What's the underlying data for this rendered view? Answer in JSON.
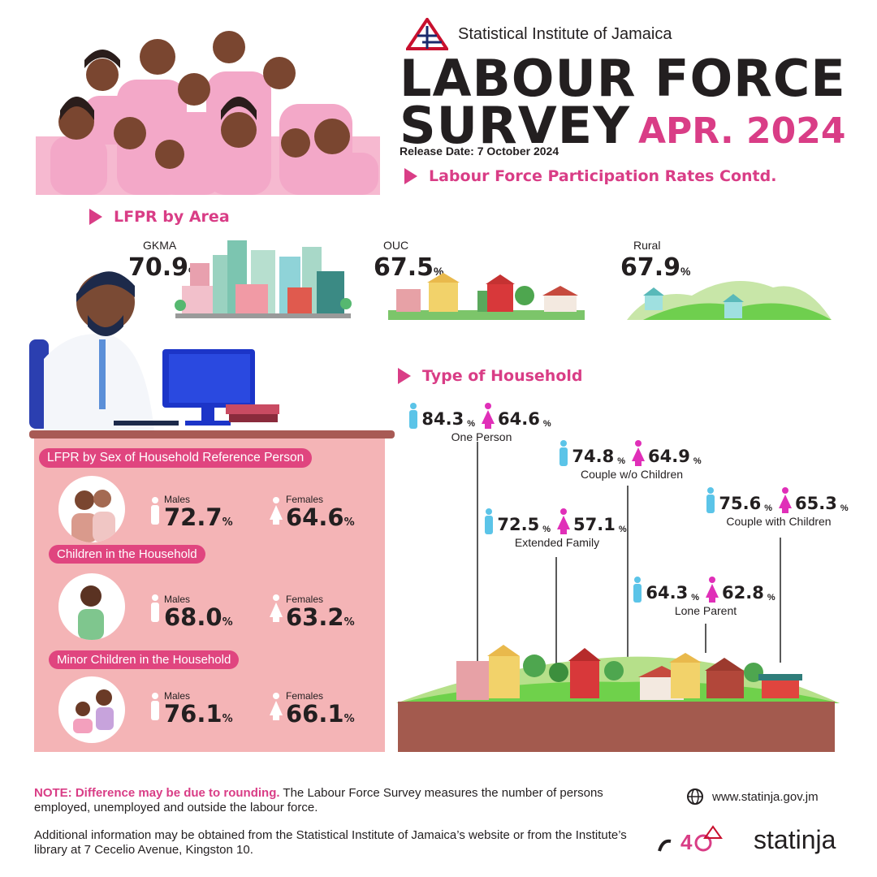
{
  "org": {
    "name": "Statistical Institute of Jamaica"
  },
  "title": {
    "line1": "LABOUR FORCE",
    "line2": "SURVEY",
    "date": "APR. 2024"
  },
  "release": "Release Date: 7 October 2024",
  "section_main": "Labour Force Participation Rates Contd.",
  "area": {
    "heading": "LFPR by Area",
    "items": [
      {
        "name": "GKMA",
        "value": "70.9",
        "pct": "%"
      },
      {
        "name": "OUC",
        "value": "67.5",
        "pct": "%"
      },
      {
        "name": "Rural",
        "value": "67.9",
        "pct": "%"
      }
    ]
  },
  "household": {
    "heading": "Type of Household",
    "items": [
      {
        "label": "One Person",
        "male": "84.3",
        "female": "64.6"
      },
      {
        "label": "Couple w/o Children",
        "male": "74.8",
        "female": "64.9"
      },
      {
        "label": "Couple with Children",
        "male": "75.6",
        "female": "65.3"
      },
      {
        "label": "Extended Family",
        "male": "72.5",
        "female": "57.1"
      },
      {
        "label": "Lone Parent",
        "male": "64.3",
        "female": "62.8"
      }
    ],
    "pct": "%"
  },
  "sex_panel": {
    "heading": "LFPR by Sex of Household Reference Person",
    "rows": [
      {
        "band": "",
        "males_label": "Males",
        "males": "72.7",
        "females_label": "Females",
        "females": "64.6"
      },
      {
        "band": "Children in the Household",
        "males_label": "Males",
        "males": "68.0",
        "females_label": "Females",
        "females": "63.2"
      },
      {
        "band": "Minor Children in the Household",
        "males_label": "Males",
        "males": "76.1",
        "females_label": "Females",
        "females": "66.1"
      }
    ],
    "pct": "%"
  },
  "footer": {
    "note_bold": "NOTE: Difference may be due to rounding.",
    "note_rest": " The Labour Force Survey measures the number of persons employed, unemployed and outside the labour force.",
    "additional": "Additional information may be obtained from the Statistical Institute of Jamaica’s website or from the Institute’s library at 7 Cecelio Avenue, Kingston 10.",
    "website": "www.statinja.gov.jm",
    "brand": "statinja"
  },
  "colors": {
    "accent": "#d93d86",
    "panel": "#f4b4b6",
    "band": "#e0457f",
    "male": "#5bc4e8",
    "female": "#e02fb8"
  }
}
